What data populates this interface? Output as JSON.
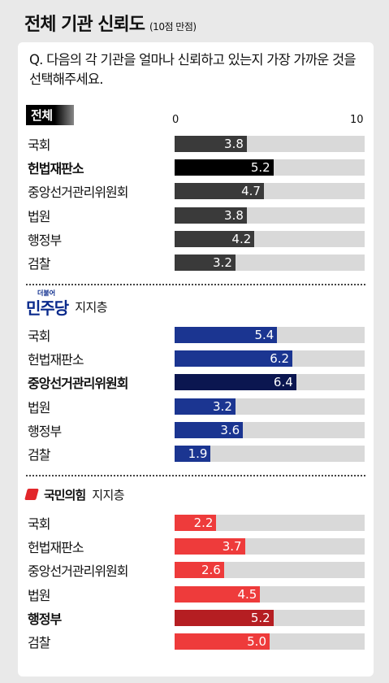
{
  "title": "전체 기관 신뢰도",
  "subtitle": "(10점 만점)",
  "question": "Q. 다음의 각 기관을 얼마나 신뢰하고 있는지 가장 가까운 것을 선택해주세요.",
  "scale": {
    "min_label": "0",
    "max_label": "10"
  },
  "groups": [
    {
      "label": "전체",
      "support": ""
    },
    {
      "label": "민주당",
      "support": "지지층",
      "logo_small": "더불어"
    },
    {
      "label": "국민의힘",
      "support": "지지층"
    }
  ],
  "chart_data": {
    "type": "bar",
    "orientation": "horizontal",
    "title": "전체 기관 신뢰도",
    "subtitle": "(10점 만점)",
    "xlim": [
      0,
      10
    ],
    "categories": [
      "국회",
      "헌법재판소",
      "중앙선거관리위원회",
      "법원",
      "행정부",
      "검찰"
    ],
    "series": [
      {
        "name": "전체",
        "values": [
          3.8,
          5.2,
          4.7,
          3.8,
          4.2,
          3.2
        ],
        "color": "#3a3a3a",
        "highlight_color": "#000000",
        "highlight_index": 1
      },
      {
        "name": "민주당 지지층",
        "values": [
          5.4,
          6.2,
          6.4,
          3.2,
          3.6,
          1.9
        ],
        "color": "#1b3591",
        "highlight_color": "#0b1650",
        "highlight_index": 2
      },
      {
        "name": "국민의힘 지지층",
        "values": [
          2.2,
          3.7,
          2.6,
          4.5,
          5.2,
          5.0
        ],
        "color": "#ee3b3b",
        "highlight_color": "#b51e22",
        "highlight_index": 4
      }
    ],
    "value_labels": [
      [
        "3.8",
        "5.2",
        "4.7",
        "3.8",
        "4.2",
        "3.2"
      ],
      [
        "5.4",
        "6.2",
        "6.4",
        "3.2",
        "3.6",
        "1.9"
      ],
      [
        "2.2",
        "3.7",
        "2.6",
        "4.5",
        "5.2",
        "5.0"
      ]
    ]
  }
}
